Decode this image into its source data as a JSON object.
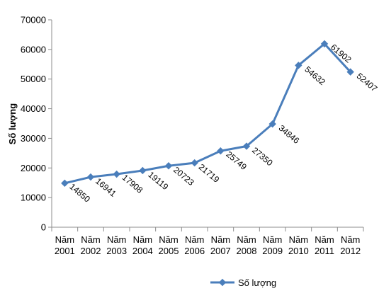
{
  "chart_data": {
    "type": "line",
    "title": "",
    "xlabel": "",
    "ylabel": "Số lượng",
    "categories": [
      [
        "Năm",
        "2001"
      ],
      [
        "Năm",
        "2002"
      ],
      [
        "Năm",
        "2003"
      ],
      [
        "Năm",
        "2004"
      ],
      [
        "Năm",
        "2005"
      ],
      [
        "Năm",
        "2006"
      ],
      [
        "Năm",
        "2007"
      ],
      [
        "Năm",
        "2008"
      ],
      [
        "Năm",
        "2009"
      ],
      [
        "Năm",
        "2010"
      ],
      [
        "Năm",
        "2011"
      ],
      [
        "Năm",
        "2012"
      ]
    ],
    "series": [
      {
        "name": "Số lượng",
        "values": [
          14850,
          16941,
          17908,
          19119,
          20723,
          21719,
          25749,
          27350,
          34846,
          54632,
          61902,
          52407
        ],
        "labels": [
          "14850",
          "16941",
          "17908",
          "19119",
          "20723",
          "21719",
          "25749",
          "27350",
          "34846",
          "54632",
          "61902",
          "52407"
        ],
        "color": "#4a7ebb",
        "marker": "diamond"
      }
    ],
    "ylim": [
      0,
      70000
    ],
    "yticks": [
      0,
      10000,
      20000,
      30000,
      40000,
      50000,
      60000,
      70000
    ],
    "ytick_labels": [
      "0",
      "10000",
      "20000",
      "30000",
      "40000",
      "50000",
      "60000",
      "70000"
    ],
    "grid": false,
    "legend": {
      "position": "bottom",
      "entries": [
        "Số lượng"
      ]
    }
  }
}
